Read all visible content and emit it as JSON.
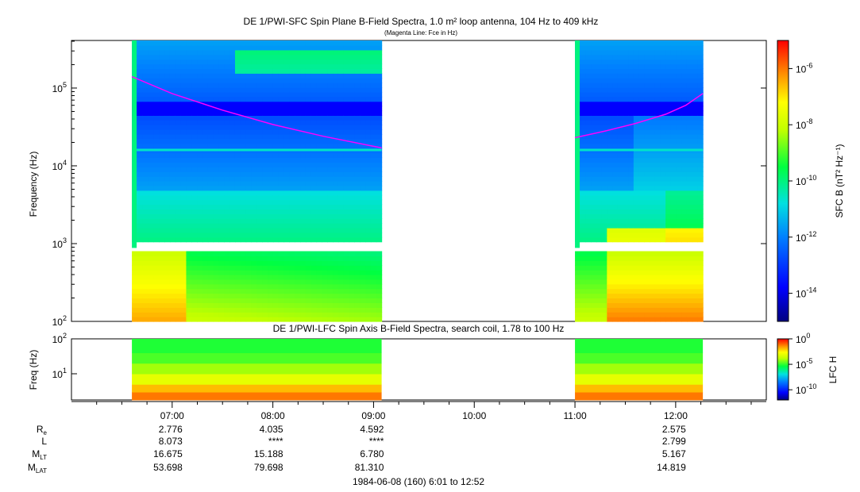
{
  "chart_data": [
    {
      "type": "heatmap",
      "title": "DE 1/PWI-SFC  Spin Plane B-Field Spectra, 1.0 m² loop antenna, 104 Hz to 409 kHz",
      "subtitle": "(Magenta Line: Fce in Hz)",
      "ylabel": "Frequency (Hz)",
      "yscale": "log",
      "ylim": [
        100,
        409000
      ],
      "ytick_labels": [
        "10^2",
        "10^3",
        "10^4",
        "10^5"
      ],
      "ytick_values": [
        100,
        1000,
        10000,
        100000
      ],
      "xlim_hours": [
        6.0,
        12.9
      ],
      "data_intervals_hours": [
        [
          6.6,
          9.08
        ],
        [
          11.0,
          12.27
        ]
      ],
      "colorbar": {
        "label": "SFC B (nT² Hz⁻¹)",
        "scale": "log",
        "range": [
          1e-15,
          1e-05
        ],
        "tick_values": [
          1e-14,
          1e-12,
          1e-10,
          1e-08,
          1e-06
        ],
        "tick_labels": [
          "10^-14",
          "10^-12",
          "10^-10",
          "10^-8",
          "10^-6"
        ]
      },
      "overlay_line": {
        "name": "Fce",
        "color": "#ff00ff",
        "segments": [
          {
            "x": [
              6.6,
              7.0,
              7.5,
              8.0,
              8.5,
              9.08
            ],
            "y": [
              140000,
              85000,
              52000,
              34000,
              24000,
              17000
            ]
          },
          {
            "x": [
              11.0,
              11.3,
              11.6,
              11.9,
              12.1,
              12.27
            ],
            "y": [
              23000,
              28000,
              35000,
              46000,
              60000,
              85000
            ]
          }
        ]
      }
    },
    {
      "type": "heatmap",
      "title": "DE 1/PWI-LFC  Spin Axis B-Field Spectra, search coil, 1.78 to 100 Hz",
      "ylabel": "Freq (Hz)",
      "yscale": "log",
      "ylim": [
        1.78,
        100
      ],
      "ytick_labels": [
        "10^1",
        "10^2"
      ],
      "ytick_values": [
        10,
        100
      ],
      "xlim_hours": [
        6.0,
        12.9
      ],
      "data_intervals_hours": [
        [
          6.6,
          9.08
        ],
        [
          11.0,
          12.27
        ]
      ],
      "colorbar": {
        "label": "LFC H",
        "scale": "log",
        "range": [
          1e-12,
          1
        ],
        "tick_values": [
          1e-10,
          1e-05,
          1
        ],
        "tick_labels": [
          "10^-10",
          "10^-5",
          "10^0"
        ]
      }
    }
  ],
  "time_axis": {
    "labels": [
      "07:00",
      "08:00",
      "09:00",
      "10:00",
      "11:00",
      "12:00"
    ],
    "hours": [
      7,
      8,
      9,
      10,
      11,
      12
    ]
  },
  "ephemeris": {
    "rows": [
      {
        "label": "R",
        "sub": "e",
        "values": [
          "2.776",
          "4.035",
          "4.592",
          "",
          "",
          "2.575"
        ]
      },
      {
        "label": "L",
        "sub": "",
        "values": [
          "8.073",
          "****",
          "****",
          "",
          "",
          "2.799"
        ]
      },
      {
        "label": "M",
        "sub": "LT",
        "values": [
          "16.675",
          "15.188",
          "6.780",
          "",
          "",
          "5.167"
        ]
      },
      {
        "label": "M",
        "sub": "LAT",
        "values": [
          "53.698",
          "79.698",
          "81.310",
          "",
          "",
          "14.819"
        ]
      }
    ]
  },
  "footer": "1984-06-08 (160) 6:01 to 12:52"
}
